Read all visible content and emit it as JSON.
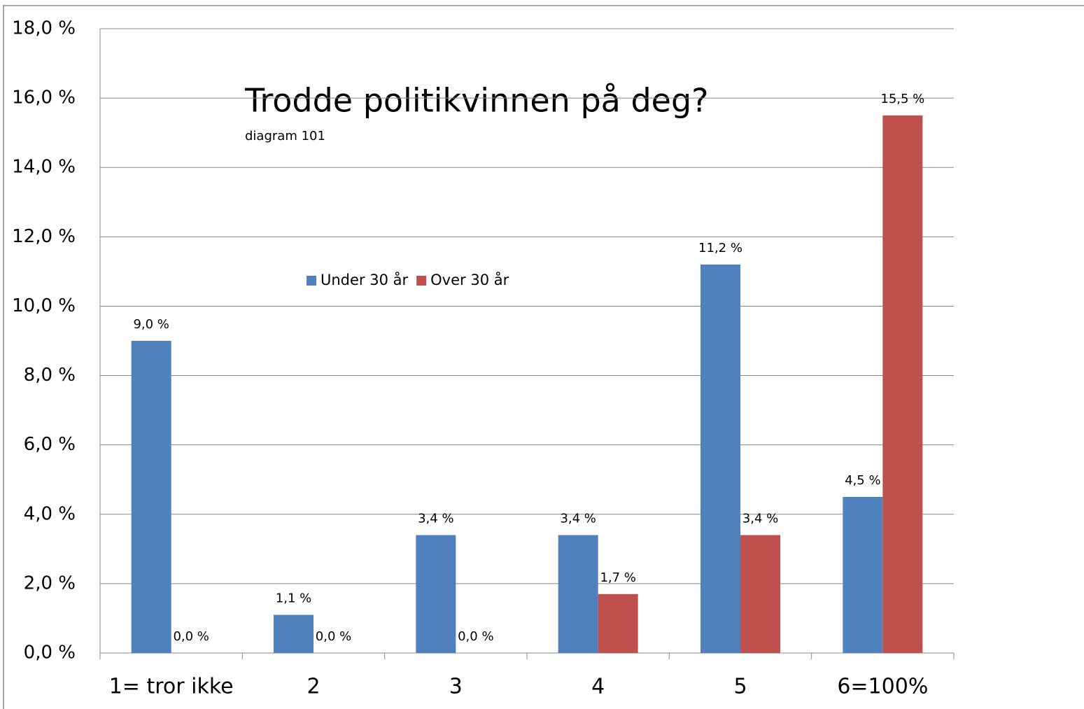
{
  "chart_data": {
    "type": "bar",
    "title": "Trodde politikvinnen  på deg?",
    "subtitle": "diagram 101",
    "categories": [
      "1= tror ikke",
      "2",
      "3",
      "4",
      "5",
      "6=100%"
    ],
    "series": [
      {
        "name": "Under 30 år",
        "color": "#4f81bd",
        "values": [
          9.0,
          1.1,
          3.4,
          3.4,
          11.2,
          4.5
        ],
        "value_labels": [
          "9,0 %",
          "1,1 %",
          "3,4 %",
          "3,4 %",
          "11,2 %",
          "4,5 %"
        ]
      },
      {
        "name": "Over 30 år",
        "color": "#c0504d",
        "values": [
          0,
          0,
          0,
          1.7,
          3.4,
          15.5
        ],
        "value_labels": [
          "0,0 %",
          "0,0 %",
          "0,0 %",
          "1,7 %",
          "3,4 %",
          "15,5 %"
        ]
      }
    ],
    "ylim": [
      0,
      18
    ],
    "yticks": [
      {
        "value": 0,
        "label": "0,0 %"
      },
      {
        "value": 2,
        "label": "2,0 %"
      },
      {
        "value": 4,
        "label": "4,0 %"
      },
      {
        "value": 6,
        "label": "6,0 %"
      },
      {
        "value": 8,
        "label": "8,0 %"
      },
      {
        "value": 10,
        "label": "10,0 %"
      },
      {
        "value": 12,
        "label": "12,0 %"
      },
      {
        "value": 14,
        "label": "14,0 %"
      },
      {
        "value": 16,
        "label": "16,0 %"
      },
      {
        "value": 18,
        "label": "18,0 %"
      }
    ],
    "grid": true,
    "legend": "upper-left"
  }
}
